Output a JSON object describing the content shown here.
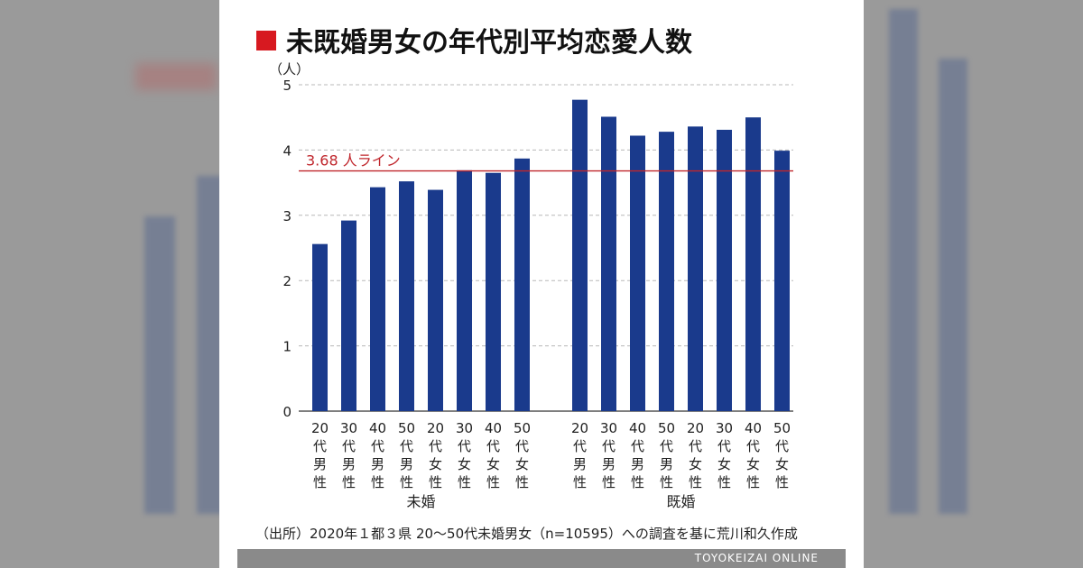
{
  "chart_data": {
    "type": "bar",
    "title": "未既婚男女の年代別平均恋愛人数",
    "ylabel": "（人）",
    "ylim": [
      0,
      5
    ],
    "yticks": [
      0,
      1,
      2,
      3,
      4,
      5
    ],
    "grid": true,
    "groups": [
      {
        "name": "未婚",
        "categories": [
          "20代男性",
          "30代男性",
          "40代男性",
          "50代男性",
          "20代女性",
          "30代女性",
          "40代女性",
          "50代女性"
        ],
        "values": [
          2.56,
          2.92,
          3.43,
          3.52,
          3.39,
          3.69,
          3.65,
          3.87
        ]
      },
      {
        "name": "既婚",
        "categories": [
          "20代男性",
          "30代男性",
          "40代男性",
          "50代男性",
          "20代女性",
          "30代女性",
          "40代女性",
          "50代女性"
        ],
        "values": [
          4.77,
          4.51,
          4.22,
          4.28,
          4.36,
          4.31,
          4.5,
          3.99
        ]
      }
    ],
    "reference_line": {
      "value": 3.68,
      "label": "3.68 人ライン",
      "color": "#c0272d"
    },
    "bar_color": "#1a3a8c"
  },
  "source": "（出所）2020年１都３県 20〜50代未婚男女（n=10595）への調査を基に荒川和久作成",
  "footer": {
    "brand": "TOYOKEIZAI ONLINE"
  },
  "colors": {
    "title_square": "#d71920",
    "footer_bg": "#8a8a8a"
  }
}
